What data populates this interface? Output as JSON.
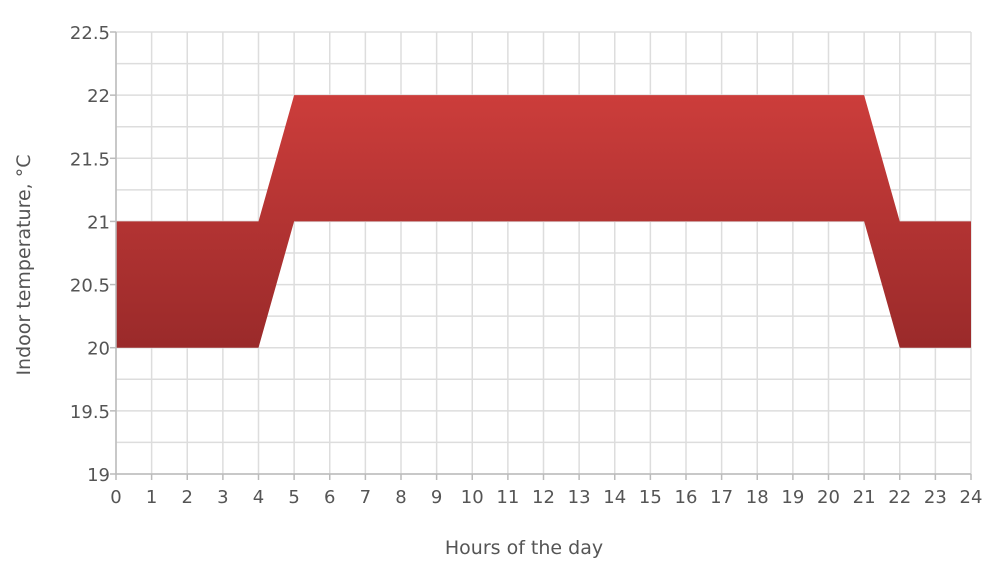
{
  "chart_data": {
    "type": "area",
    "xlabel": "Hours of the day",
    "ylabel": "Indoor temperature, °C",
    "xlim": [
      0,
      24
    ],
    "ylim": [
      19,
      22.5
    ],
    "x_ticks": [
      "0",
      "1",
      "2",
      "3",
      "4",
      "5",
      "6",
      "7",
      "8",
      "9",
      "10",
      "11",
      "12",
      "13",
      "14",
      "15",
      "16",
      "17",
      "18",
      "19",
      "20",
      "21",
      "22",
      "23",
      "24"
    ],
    "y_ticks": [
      "19",
      "19.5",
      "20",
      "20.5",
      "21",
      "21.5",
      "22",
      "22.5"
    ],
    "y_minor_step": 0.25,
    "grid": true,
    "x": [
      0,
      4,
      5,
      21,
      22,
      24
    ],
    "series": [
      {
        "role": "upper",
        "values": [
          21,
          21,
          22,
          22,
          21,
          21
        ]
      },
      {
        "role": "lower",
        "values": [
          20,
          20,
          21,
          21,
          20,
          20
        ]
      }
    ],
    "colors": {
      "band_top": "#cc3d3b",
      "band_bottom": "#9a2a2a",
      "grid": "#dddddd",
      "axis": "#bbbbbb",
      "text": "#555555"
    }
  }
}
